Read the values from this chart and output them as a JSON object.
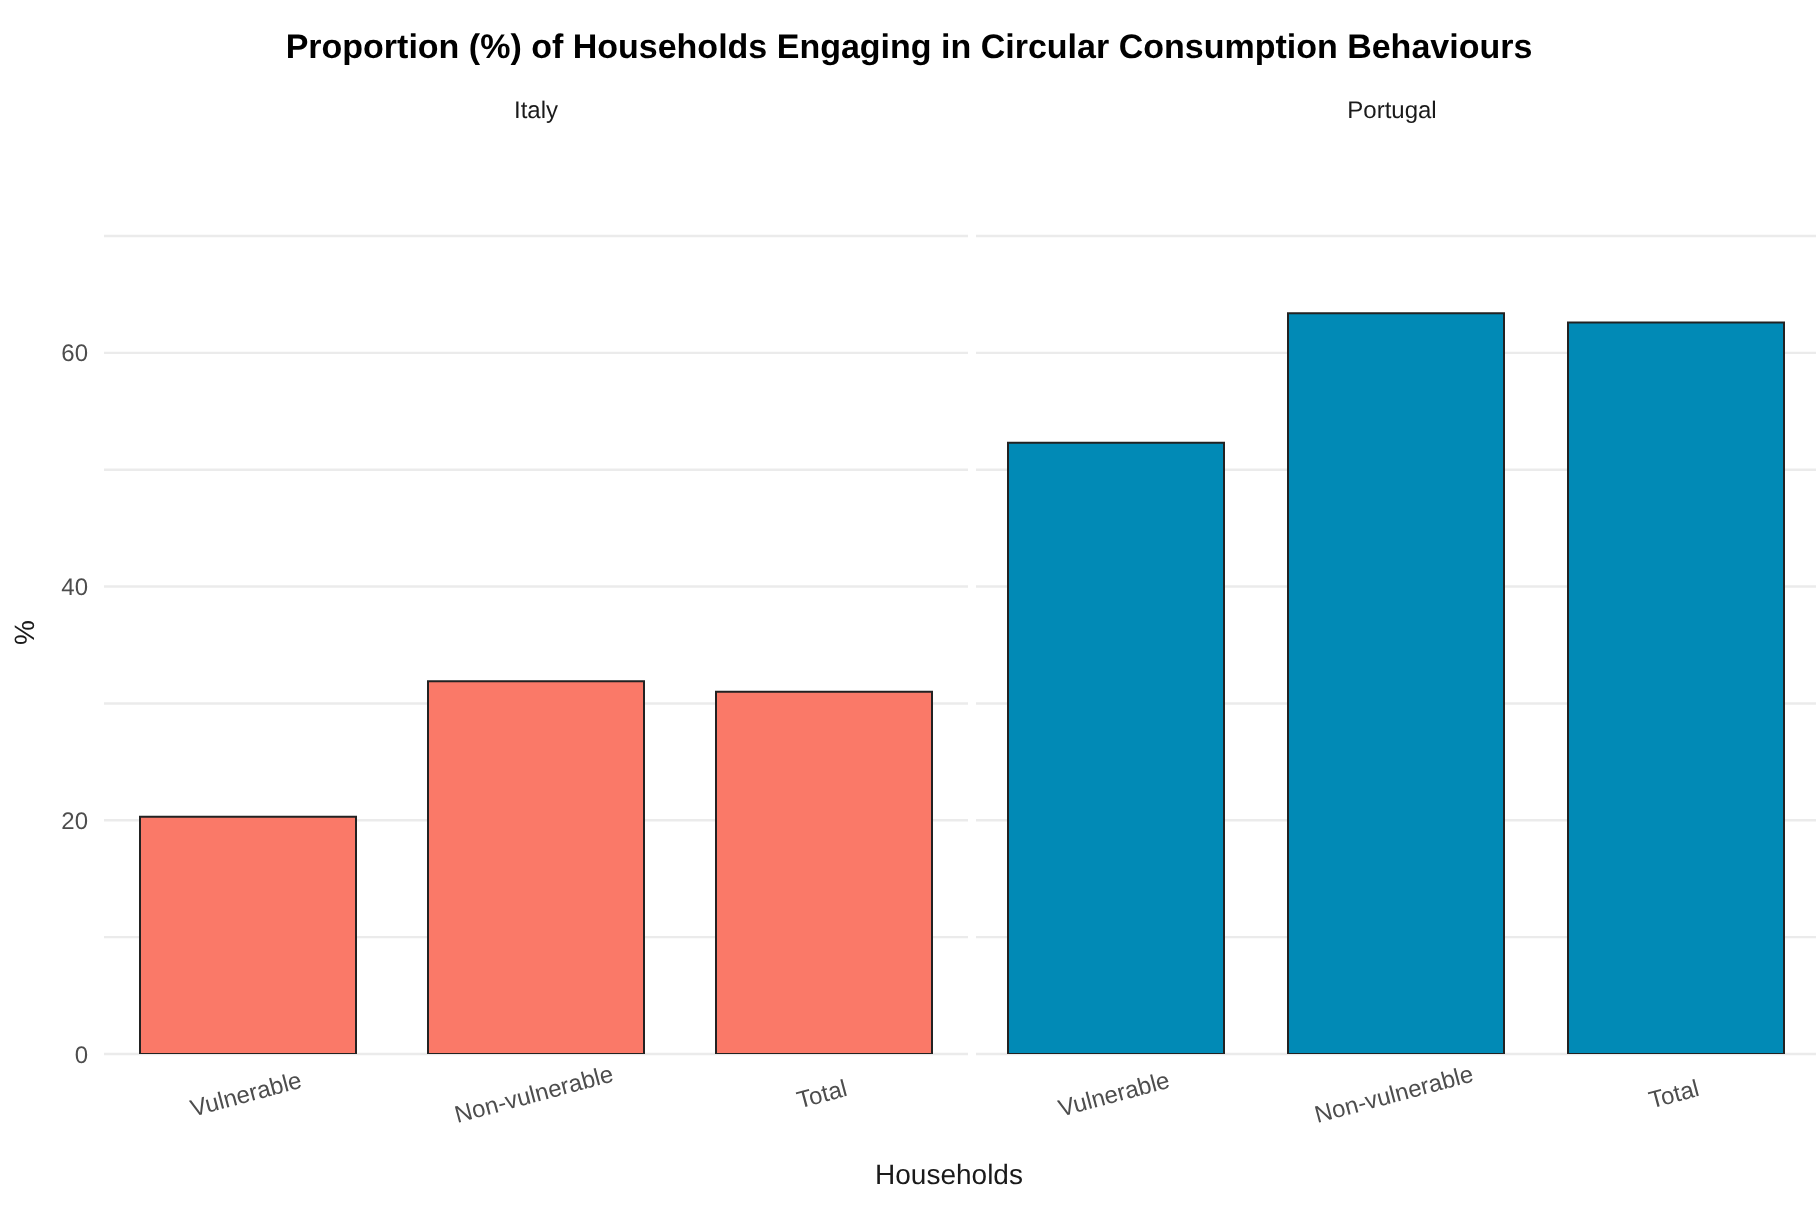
{
  "chart_data": [
    {
      "type": "bar",
      "title": "Proportion (%) of Households Engaging in Circular Consumption Behaviours",
      "subtitle": "Italy",
      "xlabel": "Households",
      "ylabel": "%",
      "categories": [
        "Vulnerable",
        "Non-vulnerable",
        "Total"
      ],
      "values": [
        20.3,
        31.9,
        31.0
      ],
      "color": "#fa7968",
      "ylim": [
        0,
        70
      ],
      "yticks": [
        0,
        {
          "value": 10,
          "label": null
        },
        20,
        {
          "value": 30,
          "label": null
        },
        40,
        {
          "value": 50,
          "label": null
        },
        60,
        {
          "value": 70,
          "label": null
        }
      ],
      "grid": "y"
    },
    {
      "type": "bar",
      "subtitle": "Portugal",
      "categories": [
        "Vulnerable",
        "Non-vulnerable",
        "Total"
      ],
      "values": [
        52.3,
        63.4,
        62.6
      ],
      "color": "#018ab6",
      "ylim": [
        0,
        70
      ],
      "yticks": [
        0,
        {
          "value": 10,
          "label": null
        },
        20,
        {
          "value": 30,
          "label": null
        },
        40,
        {
          "value": 50,
          "label": null
        },
        60,
        {
          "value": 70,
          "label": null
        }
      ],
      "grid": "y",
      "tick_labels": "x"
    }
  ]
}
